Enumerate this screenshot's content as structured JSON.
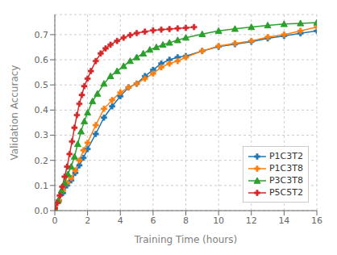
{
  "chart_data": {
    "type": "line",
    "xlabel": "Training Time (hours)",
    "ylabel": "Validation Accuracy",
    "xlim": [
      0,
      16
    ],
    "ylim": [
      0.0,
      0.78
    ],
    "xticks": [
      0,
      2,
      4,
      6,
      8,
      10,
      12,
      14,
      16
    ],
    "yticks": [
      {
        "value": 0.0,
        "label": "0.0"
      },
      0.1,
      0.2,
      0.3,
      0.4,
      0.5,
      0.6,
      0.7
    ],
    "grid": true,
    "legend": "lower right",
    "series": [
      {
        "name": "P1C3T2",
        "color": "#1f77b4",
        "marker": "plus",
        "x": [
          0.0,
          0.25,
          0.5,
          0.75,
          1.0,
          1.25,
          1.5,
          1.75,
          2.0,
          2.5,
          3.0,
          3.5,
          4.0,
          4.5,
          5.0,
          5.5,
          6.0,
          6.5,
          7.0,
          7.5,
          8.0,
          9.0,
          10.0,
          11.0,
          12.0,
          13.0,
          14.0,
          15.0,
          16.0
        ],
        "values": [
          0.01,
          0.04,
          0.07,
          0.1,
          0.12,
          0.15,
          0.18,
          0.21,
          0.245,
          0.305,
          0.37,
          0.415,
          0.455,
          0.49,
          0.505,
          0.535,
          0.56,
          0.585,
          0.6,
          0.61,
          0.615,
          0.635,
          0.652,
          0.662,
          0.672,
          0.685,
          0.695,
          0.705,
          0.715
        ]
      },
      {
        "name": "P1C3T8",
        "color": "#ff7f0e",
        "marker": "plus",
        "x": [
          0.0,
          0.25,
          0.5,
          0.75,
          1.0,
          1.25,
          1.5,
          1.75,
          2.0,
          2.5,
          3.0,
          3.5,
          4.0,
          4.5,
          5.0,
          5.5,
          6.0,
          6.5,
          7.0,
          7.5,
          8.0,
          9.0,
          10.0,
          11.0,
          12.0,
          13.0,
          14.0,
          15.0,
          16.0
        ],
        "values": [
          0.01,
          0.04,
          0.08,
          0.11,
          0.13,
          0.16,
          0.2,
          0.24,
          0.27,
          0.34,
          0.405,
          0.44,
          0.47,
          0.49,
          0.505,
          0.525,
          0.545,
          0.57,
          0.585,
          0.595,
          0.61,
          0.635,
          0.655,
          0.665,
          0.675,
          0.69,
          0.7,
          0.715,
          0.73
        ]
      },
      {
        "name": "P3C3T8",
        "color": "#2ca02c",
        "marker": "triangle",
        "x": [
          0.0,
          0.2,
          0.4,
          0.6,
          0.8,
          1.0,
          1.2,
          1.4,
          1.6,
          1.8,
          2.0,
          2.3,
          2.6,
          3.0,
          3.4,
          3.8,
          4.2,
          4.6,
          5.0,
          5.4,
          5.8,
          6.2,
          6.6,
          7.0,
          7.5,
          8.0,
          9.0,
          10.0,
          11.0,
          12.0,
          13.0,
          14.0,
          15.0,
          16.0
        ],
        "values": [
          0.01,
          0.04,
          0.08,
          0.11,
          0.145,
          0.175,
          0.215,
          0.265,
          0.315,
          0.355,
          0.39,
          0.435,
          0.465,
          0.505,
          0.535,
          0.555,
          0.575,
          0.595,
          0.61,
          0.625,
          0.64,
          0.65,
          0.66,
          0.668,
          0.678,
          0.688,
          0.702,
          0.715,
          0.723,
          0.73,
          0.737,
          0.742,
          0.745,
          0.748
        ]
      },
      {
        "name": "P5C5T2",
        "color": "#d62728",
        "marker": "plus",
        "x": [
          0.0,
          0.15,
          0.3,
          0.45,
          0.6,
          0.75,
          0.9,
          1.05,
          1.2,
          1.35,
          1.5,
          1.65,
          1.8,
          2.0,
          2.2,
          2.5,
          2.8,
          3.1,
          3.4,
          3.8,
          4.2,
          4.6,
          5.0,
          5.5,
          6.0,
          6.5,
          7.0,
          7.5,
          8.0,
          8.5
        ],
        "values": [
          0.01,
          0.03,
          0.06,
          0.095,
          0.135,
          0.175,
          0.225,
          0.275,
          0.33,
          0.38,
          0.425,
          0.46,
          0.495,
          0.525,
          0.555,
          0.595,
          0.625,
          0.645,
          0.66,
          0.675,
          0.688,
          0.698,
          0.706,
          0.712,
          0.717,
          0.72,
          0.722,
          0.725,
          0.727,
          0.73
        ]
      }
    ]
  }
}
